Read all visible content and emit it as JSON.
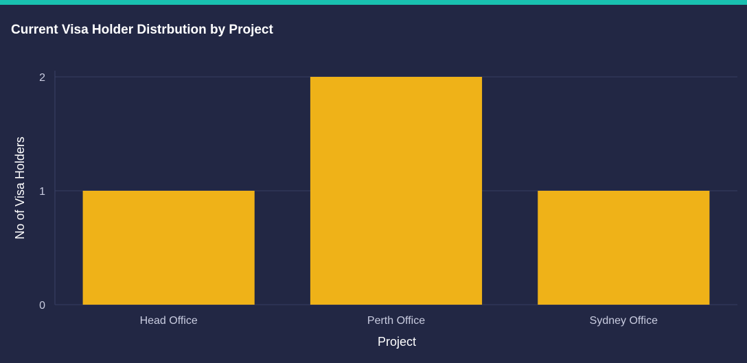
{
  "panel": {
    "title": "Current Visa Holder Distrbution by Project",
    "accent_color": "#19c0b0",
    "background_color": "#222744"
  },
  "chart_data": {
    "type": "bar",
    "title": "Current Visa Holder Distrbution by Project",
    "categories": [
      "Head Office",
      "Perth Office",
      "Sydney Office"
    ],
    "values": [
      1,
      2,
      1
    ],
    "xlabel": "Project",
    "ylabel": "No of Visa Holders",
    "ylim": [
      0,
      2
    ],
    "yticks": [
      "0",
      "1",
      "2"
    ],
    "bar_color": "#efb218",
    "grid": true,
    "legend": "none"
  }
}
